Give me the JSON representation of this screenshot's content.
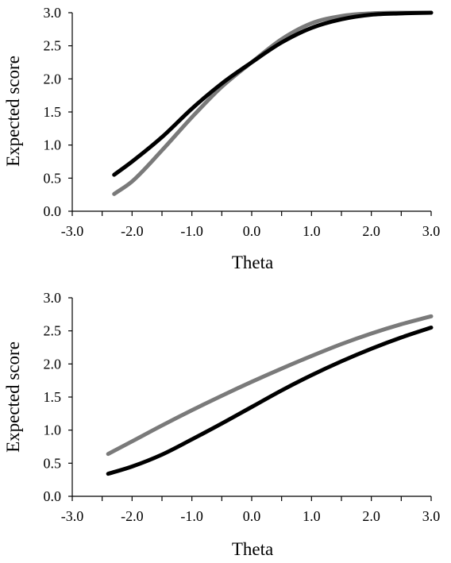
{
  "chart_data": [
    {
      "type": "line",
      "xlabel": "Theta",
      "ylabel": "Expected score",
      "xlim": [
        -3.0,
        3.0
      ],
      "ylim": [
        0.0,
        3.0
      ],
      "xticks": [
        "-3.0",
        "-2.0",
        "-1.0",
        "0.0",
        "1.0",
        "2.0",
        "3.0"
      ],
      "yticks": [
        "0.0",
        "0.5",
        "1.0",
        "1.5",
        "2.0",
        "2.5",
        "3.0"
      ],
      "grid": false,
      "series": [
        {
          "color": "#7a7a7a",
          "x": [
            -2.3,
            -2.0,
            -1.5,
            -1.0,
            -0.5,
            0.0,
            0.5,
            1.0,
            1.5,
            2.0,
            2.5,
            3.0
          ],
          "y": [
            0.26,
            0.45,
            0.92,
            1.42,
            1.88,
            2.25,
            2.6,
            2.84,
            2.95,
            2.99,
            3.0,
            3.0
          ]
        },
        {
          "color": "#000000",
          "x": [
            -2.3,
            -2.0,
            -1.5,
            -1.0,
            -0.5,
            0.0,
            0.5,
            1.0,
            1.5,
            2.0,
            2.5,
            3.0
          ],
          "y": [
            0.55,
            0.75,
            1.12,
            1.55,
            1.93,
            2.25,
            2.55,
            2.77,
            2.9,
            2.97,
            2.99,
            3.0
          ]
        }
      ]
    },
    {
      "type": "line",
      "xlabel": "Theta",
      "ylabel": "Expected score",
      "xlim": [
        -3.0,
        3.0
      ],
      "ylim": [
        0.0,
        3.0
      ],
      "xticks": [
        "-3.0",
        "-2.0",
        "-1.0",
        "0.0",
        "1.0",
        "2.0",
        "3.0"
      ],
      "yticks": [
        "0.0",
        "0.5",
        "1.0",
        "1.5",
        "2.0",
        "2.5",
        "3.0"
      ],
      "grid": false,
      "series": [
        {
          "color": "#7a7a7a",
          "x": [
            -2.4,
            -2.0,
            -1.5,
            -1.0,
            -0.5,
            0.0,
            0.5,
            1.0,
            1.5,
            2.0,
            2.5,
            3.0
          ],
          "y": [
            0.64,
            0.83,
            1.07,
            1.3,
            1.52,
            1.73,
            1.93,
            2.12,
            2.3,
            2.46,
            2.6,
            2.72
          ]
        },
        {
          "color": "#000000",
          "x": [
            -2.4,
            -2.0,
            -1.5,
            -1.0,
            -0.5,
            0.0,
            0.5,
            1.0,
            1.5,
            2.0,
            2.5,
            3.0
          ],
          "y": [
            0.34,
            0.45,
            0.63,
            0.86,
            1.1,
            1.35,
            1.6,
            1.83,
            2.04,
            2.23,
            2.4,
            2.55
          ]
        }
      ]
    }
  ]
}
